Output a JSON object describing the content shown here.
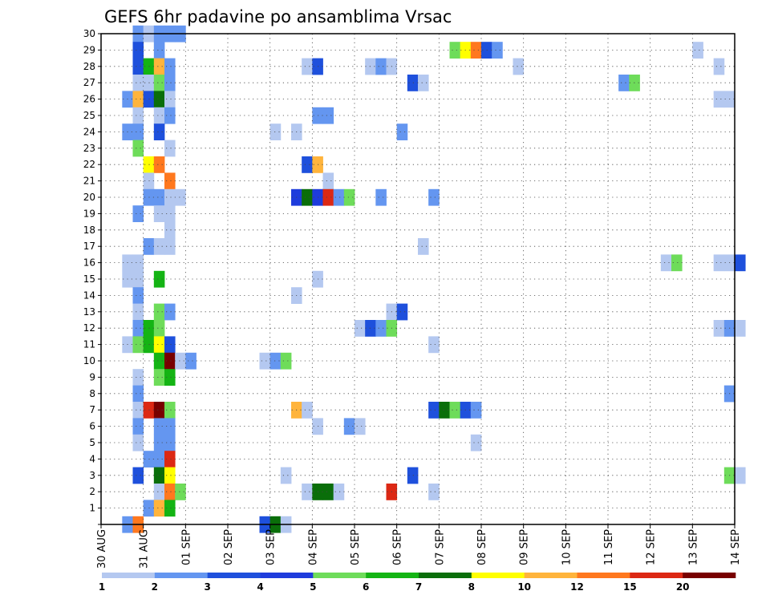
{
  "chart_data": {
    "type": "heatmap",
    "title": "GEFS 6hr padavine po ansamblima Vrsac",
    "xlabel": "",
    "ylabel": "",
    "x_ticks": [
      "30 AUG",
      "31 AUG",
      "01 SEP",
      "02 SEP",
      "03 SEP",
      "04 SEP",
      "05 SEP",
      "06 SEP",
      "07 SEP",
      "08 SEP",
      "09 SEP",
      "10 SEP",
      "11 SEP",
      "12 SEP",
      "13 SEP",
      "14 SEP"
    ],
    "y_ticks": [
      "1",
      "2",
      "3",
      "4",
      "5",
      "6",
      "7",
      "8",
      "9",
      "10",
      "11",
      "12",
      "13",
      "14",
      "15",
      "16",
      "17",
      "18",
      "19",
      "20",
      "21",
      "22",
      "23",
      "24",
      "25",
      "26",
      "27",
      "28",
      "29",
      "30"
    ],
    "time_steps_per_day": 4,
    "member_range": [
      0,
      30
    ],
    "grid": true,
    "colorbar": {
      "labels": [
        "1",
        "2",
        "3",
        "4",
        "5",
        "6",
        "7",
        "8",
        "10",
        "12",
        "15",
        "20"
      ],
      "colors": [
        "#b4c8f0",
        "#6496f0",
        "#1e50dc",
        "#1e3cdc",
        "#6edc5a",
        "#14b414",
        "#0a6e0a",
        "#ffff00",
        "#ffb43c",
        "#ff781e",
        "#dc2814",
        "#780000"
      ]
    },
    "cells": [
      [
        3,
        30,
        1
      ],
      [
        4,
        30,
        0
      ],
      [
        5,
        30,
        1
      ],
      [
        6,
        30,
        1
      ],
      [
        7,
        30,
        1
      ],
      [
        3,
        29,
        2
      ],
      [
        5,
        29,
        1
      ],
      [
        33,
        29,
        4
      ],
      [
        34,
        29,
        7
      ],
      [
        35,
        29,
        9
      ],
      [
        36,
        29,
        2
      ],
      [
        37,
        29,
        1
      ],
      [
        56,
        29,
        0
      ],
      [
        3,
        28,
        2
      ],
      [
        4,
        28,
        5
      ],
      [
        5,
        28,
        8
      ],
      [
        6,
        28,
        1
      ],
      [
        19,
        28,
        0
      ],
      [
        20,
        28,
        2
      ],
      [
        25,
        28,
        0
      ],
      [
        26,
        28,
        1
      ],
      [
        27,
        28,
        0
      ],
      [
        39,
        28,
        0
      ],
      [
        58,
        28,
        0
      ],
      [
        3,
        27,
        0
      ],
      [
        4,
        27,
        0
      ],
      [
        5,
        27,
        4
      ],
      [
        6,
        27,
        1
      ],
      [
        29,
        27,
        2
      ],
      [
        30,
        27,
        0
      ],
      [
        49,
        27,
        1
      ],
      [
        50,
        27,
        4
      ],
      [
        2,
        26,
        1
      ],
      [
        3,
        26,
        8
      ],
      [
        4,
        26,
        2
      ],
      [
        5,
        26,
        6
      ],
      [
        6,
        26,
        0
      ],
      [
        58,
        26,
        0
      ],
      [
        59,
        26,
        0
      ],
      [
        3,
        25,
        0
      ],
      [
        5,
        25,
        0
      ],
      [
        6,
        25,
        1
      ],
      [
        20,
        25,
        1
      ],
      [
        21,
        25,
        1
      ],
      [
        2,
        24,
        1
      ],
      [
        3,
        24,
        1
      ],
      [
        5,
        24,
        2
      ],
      [
        16,
        24,
        0
      ],
      [
        18,
        24,
        0
      ],
      [
        28,
        24,
        1
      ],
      [
        3,
        23,
        4
      ],
      [
        6,
        23,
        0
      ],
      [
        4,
        22,
        7
      ],
      [
        5,
        22,
        9
      ],
      [
        19,
        22,
        2
      ],
      [
        20,
        22,
        8
      ],
      [
        4,
        21,
        0
      ],
      [
        6,
        21,
        9
      ],
      [
        21,
        21,
        0
      ],
      [
        4,
        20,
        1
      ],
      [
        5,
        20,
        1
      ],
      [
        6,
        20,
        0
      ],
      [
        7,
        20,
        0
      ],
      [
        18,
        20,
        3
      ],
      [
        19,
        20,
        6
      ],
      [
        20,
        20,
        3
      ],
      [
        21,
        20,
        10
      ],
      [
        22,
        20,
        1
      ],
      [
        23,
        20,
        4
      ],
      [
        26,
        20,
        1
      ],
      [
        31,
        20,
        1
      ],
      [
        3,
        19,
        1
      ],
      [
        5,
        19,
        0
      ],
      [
        6,
        19,
        0
      ],
      [
        6,
        18,
        0
      ],
      [
        4,
        17,
        1
      ],
      [
        5,
        17,
        0
      ],
      [
        6,
        17,
        0
      ],
      [
        30,
        17,
        0
      ],
      [
        2,
        16,
        0
      ],
      [
        3,
        16,
        0
      ],
      [
        53,
        16,
        0
      ],
      [
        54,
        16,
        4
      ],
      [
        58,
        16,
        0
      ],
      [
        59,
        16,
        0
      ],
      [
        60,
        16,
        2
      ],
      [
        2,
        15,
        0
      ],
      [
        3,
        15,
        0
      ],
      [
        5,
        15,
        5
      ],
      [
        20,
        15,
        0
      ],
      [
        3,
        14,
        1
      ],
      [
        18,
        14,
        0
      ],
      [
        3,
        13,
        0
      ],
      [
        5,
        13,
        4
      ],
      [
        6,
        13,
        1
      ],
      [
        27,
        13,
        0
      ],
      [
        28,
        13,
        2
      ],
      [
        3,
        12,
        1
      ],
      [
        4,
        12,
        5
      ],
      [
        5,
        12,
        4
      ],
      [
        24,
        12,
        0
      ],
      [
        25,
        12,
        2
      ],
      [
        26,
        12,
        1
      ],
      [
        27,
        12,
        4
      ],
      [
        58,
        12,
        0
      ],
      [
        59,
        12,
        1
      ],
      [
        60,
        12,
        0
      ],
      [
        2,
        11,
        0
      ],
      [
        3,
        11,
        4
      ],
      [
        4,
        11,
        5
      ],
      [
        5,
        11,
        7
      ],
      [
        6,
        11,
        2
      ],
      [
        31,
        11,
        0
      ],
      [
        5,
        10,
        5
      ],
      [
        6,
        10,
        11
      ],
      [
        7,
        10,
        0
      ],
      [
        8,
        10,
        1
      ],
      [
        15,
        10,
        0
      ],
      [
        16,
        10,
        1
      ],
      [
        17,
        10,
        4
      ],
      [
        3,
        9,
        0
      ],
      [
        5,
        9,
        4
      ],
      [
        6,
        9,
        5
      ],
      [
        3,
        8,
        1
      ],
      [
        59,
        8,
        1
      ],
      [
        3,
        7,
        0
      ],
      [
        4,
        7,
        10
      ],
      [
        5,
        7,
        11
      ],
      [
        6,
        7,
        4
      ],
      [
        18,
        7,
        8
      ],
      [
        19,
        7,
        0
      ],
      [
        31,
        7,
        2
      ],
      [
        32,
        7,
        6
      ],
      [
        33,
        7,
        4
      ],
      [
        34,
        7,
        2
      ],
      [
        35,
        7,
        1
      ],
      [
        3,
        6,
        1
      ],
      [
        5,
        6,
        1
      ],
      [
        6,
        6,
        1
      ],
      [
        20,
        6,
        0
      ],
      [
        23,
        6,
        1
      ],
      [
        24,
        6,
        0
      ],
      [
        3,
        5,
        0
      ],
      [
        5,
        5,
        1
      ],
      [
        6,
        5,
        1
      ],
      [
        35,
        5,
        0
      ],
      [
        4,
        4,
        1
      ],
      [
        5,
        4,
        1
      ],
      [
        6,
        4,
        10
      ],
      [
        3,
        3,
        2
      ],
      [
        5,
        3,
        6
      ],
      [
        6,
        3,
        7
      ],
      [
        17,
        3,
        0
      ],
      [
        29,
        3,
        2
      ],
      [
        59,
        3,
        4
      ],
      [
        60,
        3,
        0
      ],
      [
        5,
        2,
        0
      ],
      [
        6,
        2,
        9
      ],
      [
        7,
        2,
        4
      ],
      [
        19,
        2,
        0
      ],
      [
        20,
        2,
        6
      ],
      [
        21,
        2,
        6
      ],
      [
        22,
        2,
        0
      ],
      [
        27,
        2,
        10
      ],
      [
        31,
        2,
        0
      ],
      [
        4,
        1,
        1
      ],
      [
        5,
        1,
        8
      ],
      [
        6,
        1,
        5
      ],
      [
        2,
        0,
        1
      ],
      [
        3,
        0,
        9
      ],
      [
        15,
        0,
        2
      ],
      [
        16,
        0,
        6
      ],
      [
        17,
        0,
        0
      ]
    ]
  }
}
